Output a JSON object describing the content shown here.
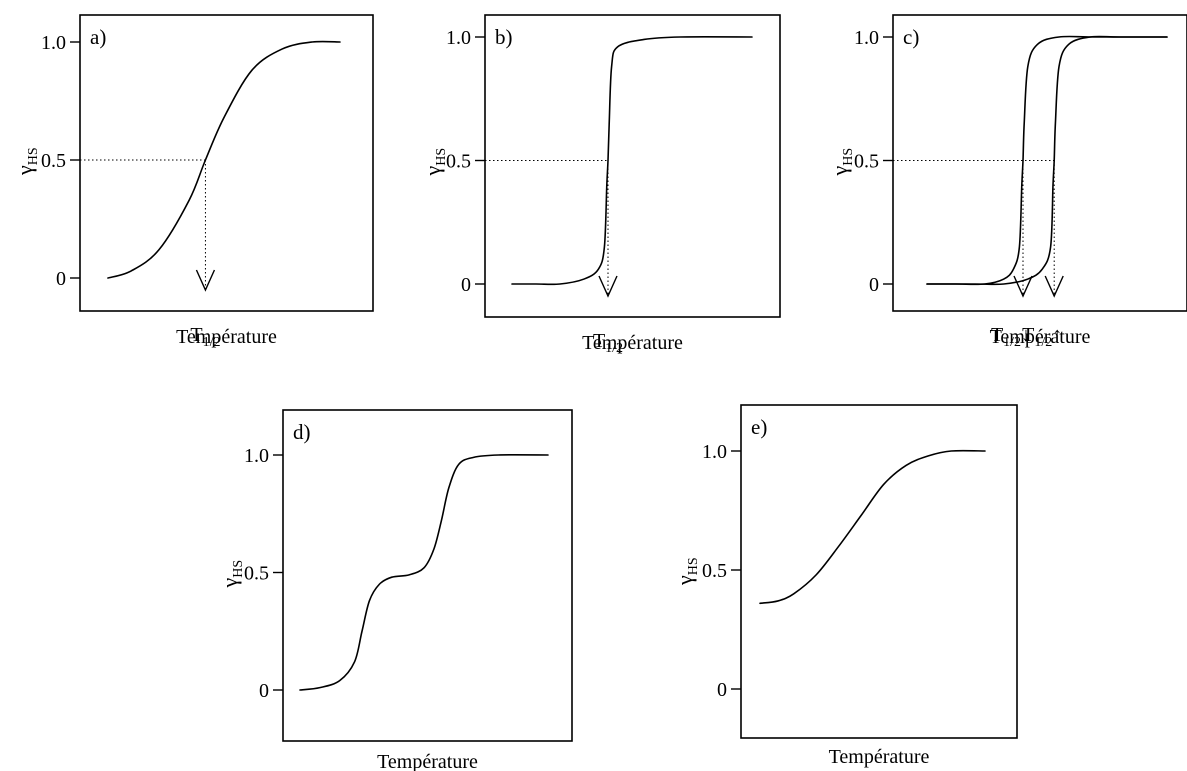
{
  "chart_data": [
    {
      "type": "line",
      "panel_label": "a)",
      "ylabel": "γ",
      "ylabel_sub": "HS",
      "xlabel": "Température",
      "y_ticks": [
        "0",
        "0.5",
        "1.0"
      ],
      "ylim": [
        0,
        1
      ],
      "series": [
        {
          "x": [
            0.0,
            0.1,
            0.22,
            0.35,
            0.42,
            0.5,
            0.62,
            0.75,
            0.88,
            1.0
          ],
          "y": [
            0.0,
            0.03,
            0.12,
            0.33,
            0.5,
            0.68,
            0.88,
            0.97,
            1.0,
            1.0
          ]
        }
      ],
      "midpoints": [
        {
          "x": 0.42,
          "label": "T",
          "label_sub": "1/2",
          "label_arrow": ""
        }
      ]
    },
    {
      "type": "line",
      "panel_label": "b)",
      "ylabel": "γ",
      "ylabel_sub": "HS",
      "xlabel": "Température",
      "y_ticks": [
        "0",
        "0.5",
        "1.0"
      ],
      "ylim": [
        0,
        1
      ],
      "series": [
        {
          "x": [
            0.0,
            0.1,
            0.2,
            0.3,
            0.36,
            0.385,
            0.395,
            0.4,
            0.405,
            0.415,
            0.44,
            0.55,
            0.7,
            1.0
          ],
          "y": [
            0.0,
            0.0,
            0.0,
            0.02,
            0.06,
            0.15,
            0.4,
            0.5,
            0.65,
            0.88,
            0.96,
            0.99,
            1.0,
            1.0
          ]
        }
      ],
      "midpoints": [
        {
          "x": 0.4,
          "label": "T",
          "label_sub": "1/2",
          "label_arrow": ""
        }
      ]
    },
    {
      "type": "line",
      "panel_label": "c)",
      "ylabel": "γ",
      "ylabel_sub": "HS",
      "xlabel": "Température",
      "y_ticks": [
        "0",
        "0.5",
        "1.0"
      ],
      "ylim": [
        0,
        1
      ],
      "series": [
        {
          "x": [
            0.0,
            0.12,
            0.24,
            0.32,
            0.36,
            0.385,
            0.395,
            0.4,
            0.405,
            0.42,
            0.46,
            0.55,
            0.7,
            1.0
          ],
          "y": [
            0.0,
            0.0,
            0.0,
            0.02,
            0.06,
            0.15,
            0.4,
            0.5,
            0.65,
            0.88,
            0.97,
            1.0,
            1.0,
            1.0
          ]
        },
        {
          "x": [
            0.0,
            0.2,
            0.32,
            0.42,
            0.48,
            0.515,
            0.525,
            0.53,
            0.535,
            0.55,
            0.59,
            0.68,
            0.8,
            1.0
          ],
          "y": [
            0.0,
            0.0,
            0.0,
            0.02,
            0.06,
            0.15,
            0.4,
            0.5,
            0.65,
            0.88,
            0.97,
            1.0,
            1.0,
            1.0
          ]
        }
      ],
      "midpoints": [
        {
          "x": 0.4,
          "label": "T",
          "label_sub": "1/2",
          "label_arrow": "↓"
        },
        {
          "x": 0.53,
          "label": "T",
          "label_sub": "1/2",
          "label_arrow": "↑"
        }
      ]
    },
    {
      "type": "line",
      "panel_label": "d)",
      "ylabel": "γ",
      "ylabel_sub": "HS",
      "xlabel": "Température",
      "y_ticks": [
        "0",
        "0.5",
        "1.0"
      ],
      "ylim": [
        0,
        1
      ],
      "series": [
        {
          "x": [
            0.0,
            0.08,
            0.16,
            0.22,
            0.25,
            0.28,
            0.32,
            0.37,
            0.44,
            0.5,
            0.54,
            0.57,
            0.6,
            0.64,
            0.7,
            0.8,
            1.0
          ],
          "y": [
            0.0,
            0.01,
            0.04,
            0.12,
            0.25,
            0.38,
            0.45,
            0.48,
            0.49,
            0.52,
            0.6,
            0.72,
            0.86,
            0.96,
            0.99,
            1.0,
            1.0
          ]
        }
      ],
      "midpoints": []
    },
    {
      "type": "line",
      "panel_label": "e)",
      "ylabel": "γ",
      "ylabel_sub": "HS",
      "xlabel": "Température",
      "y_ticks": [
        "0",
        "0.5",
        "1.0"
      ],
      "ylim": [
        0,
        1
      ],
      "series": [
        {
          "x": [
            0.0,
            0.08,
            0.15,
            0.25,
            0.35,
            0.45,
            0.55,
            0.65,
            0.75,
            0.85,
            1.0
          ],
          "y": [
            0.36,
            0.37,
            0.4,
            0.48,
            0.6,
            0.73,
            0.86,
            0.94,
            0.98,
            1.0,
            1.0
          ]
        }
      ],
      "midpoints": []
    }
  ]
}
